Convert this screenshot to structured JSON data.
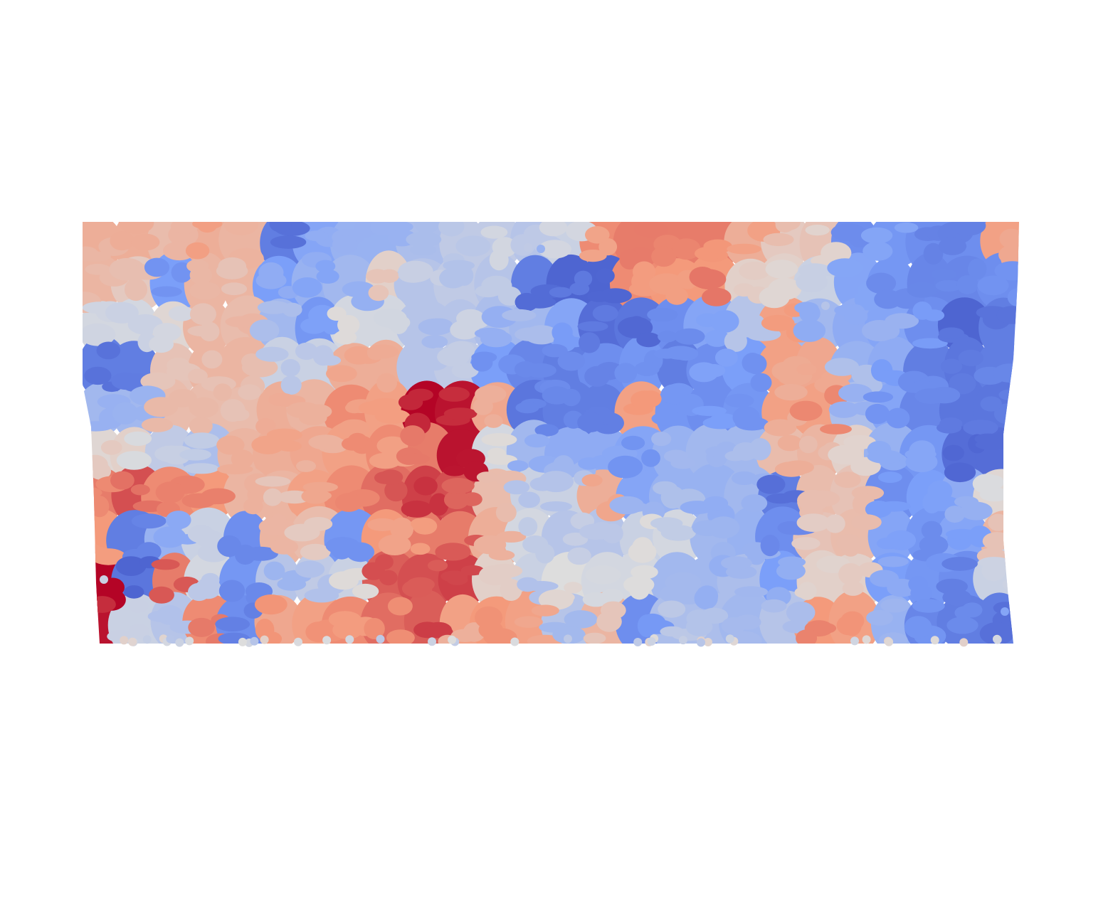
{
  "chart_data": {
    "type": "scatter",
    "title": "",
    "xlabel": "",
    "ylabel": "",
    "axes_visible": false,
    "grid": false,
    "legend": "none",
    "colormap": "coolwarm",
    "color_scale": {
      "-1.0": "#3b4cc0",
      "-0.5": "#7b9ff9",
      "0.0": "#dddddd",
      "0.5": "#f49a7b",
      "1.0": "#b40426"
    },
    "cell_grid": {
      "columns": 26,
      "rows": 10,
      "values": [
        [
          0.35,
          0.35,
          0.25,
          0.35,
          0.3,
          -0.7,
          -0.45,
          -0.35,
          -0.35,
          -0.25,
          -0.15,
          -0.15,
          -0.2,
          -0.1,
          0.55,
          0.6,
          0.6,
          0.6,
          0.35,
          0.15,
          0.2,
          -0.6,
          -0.55,
          -0.6,
          -0.6,
          0.45
        ],
        [
          0.3,
          0.15,
          -0.5,
          0.3,
          0.3,
          -0.5,
          -0.35,
          -0.3,
          0.1,
          -0.2,
          -0.15,
          -0.2,
          -0.7,
          -0.85,
          -0.85,
          0.55,
          0.5,
          0.5,
          0.1,
          0.1,
          -0.1,
          -0.45,
          -0.55,
          -0.65,
          -0.65,
          -0.6
        ],
        [
          -0.05,
          -0.05,
          0.05,
          0.3,
          0.25,
          -0.3,
          -0.55,
          -0.05,
          -0.05,
          -0.2,
          -0.2,
          -0.25,
          -0.3,
          -0.45,
          -0.8,
          -0.75,
          -0.6,
          -0.45,
          -0.2,
          0.45,
          -0.3,
          -0.4,
          -0.45,
          -0.6,
          -0.85,
          -0.7
        ],
        [
          -0.7,
          -0.7,
          0.2,
          0.3,
          0.3,
          -0.1,
          -0.1,
          0.35,
          0.35,
          -0.2,
          -0.15,
          -0.5,
          -0.65,
          -0.7,
          -0.6,
          -0.55,
          -0.7,
          -0.6,
          -0.5,
          0.45,
          0.4,
          -0.35,
          -0.4,
          -0.7,
          -0.75,
          -0.7
        ],
        [
          -0.3,
          -0.3,
          0.25,
          0.25,
          0.25,
          0.35,
          0.3,
          0.55,
          0.45,
          1.0,
          0.95,
          0.4,
          -0.75,
          -0.7,
          -0.7,
          0.45,
          -0.55,
          -0.6,
          -0.55,
          0.45,
          0.45,
          -0.25,
          -0.45,
          -0.65,
          -0.75,
          -0.75
        ],
        [
          0.05,
          0.1,
          -0.15,
          -0.25,
          0.3,
          0.35,
          0.4,
          0.45,
          0.55,
          0.6,
          0.95,
          -0.05,
          -0.3,
          -0.4,
          -0.4,
          -0.45,
          -0.35,
          -0.3,
          -0.3,
          0.25,
          0.3,
          0.1,
          -0.35,
          -0.55,
          -0.8,
          -0.8
        ],
        [
          0.6,
          0.75,
          0.55,
          0.5,
          0.3,
          0.3,
          0.45,
          0.55,
          0.65,
          0.8,
          0.75,
          0.25,
          -0.1,
          -0.1,
          0.35,
          -0.45,
          -0.35,
          -0.35,
          -0.3,
          -0.7,
          0.25,
          0.2,
          -0.6,
          -0.5,
          -0.4,
          0.05
        ],
        [
          0.5,
          -0.7,
          -0.35,
          -0.1,
          -0.6,
          0.3,
          0.25,
          -0.55,
          0.5,
          0.6,
          0.6,
          0.35,
          -0.05,
          -0.2,
          -0.2,
          -0.1,
          -0.05,
          -0.3,
          -0.35,
          -0.6,
          0.2,
          0.25,
          -0.45,
          -0.55,
          -0.45,
          0.3
        ],
        [
          1.0,
          -0.75,
          0.6,
          -0.05,
          -0.55,
          -0.2,
          -0.15,
          -0.1,
          0.7,
          0.75,
          0.8,
          0.1,
          -0.1,
          0.0,
          -0.05,
          -0.05,
          -0.3,
          -0.3,
          -0.25,
          -0.5,
          0.1,
          0.1,
          -0.5,
          -0.55,
          -0.6,
          -0.1
        ],
        [
          0.95,
          -0.1,
          -0.2,
          0.55,
          -0.6,
          0.4,
          0.45,
          0.55,
          0.65,
          0.7,
          0.45,
          0.5,
          0.45,
          -0.2,
          0.3,
          -0.6,
          -0.25,
          -0.25,
          -0.3,
          -0.2,
          0.5,
          0.45,
          -0.35,
          -0.65,
          -0.7,
          -0.7
        ]
      ]
    }
  }
}
